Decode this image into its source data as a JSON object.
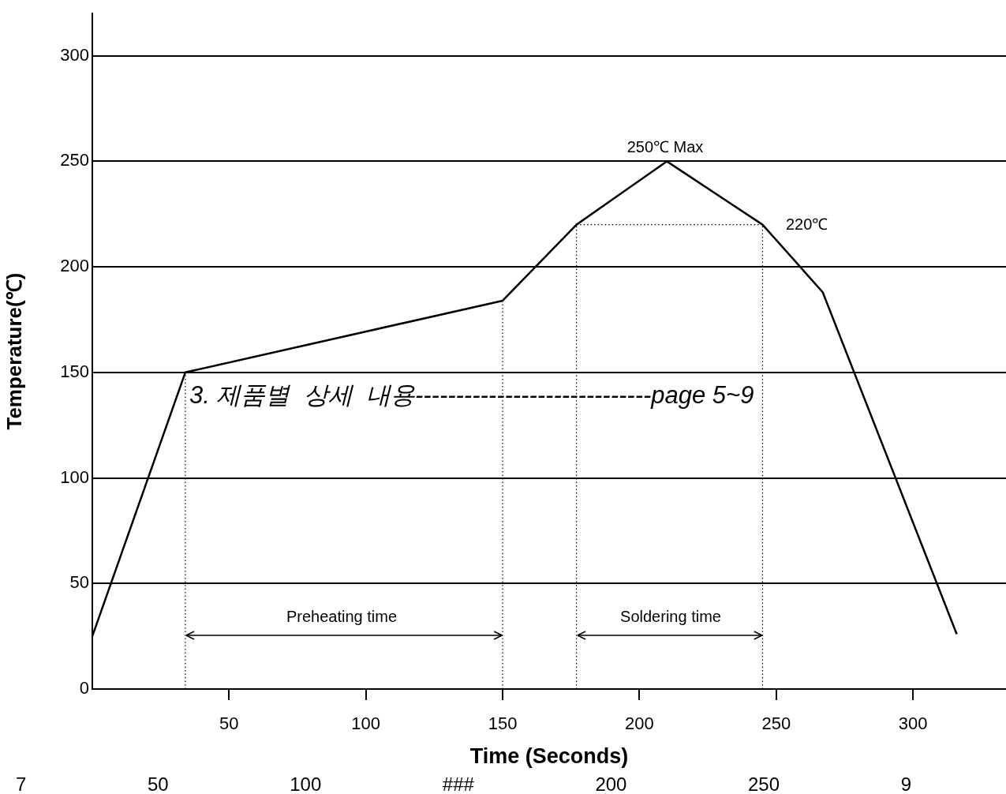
{
  "chart_data": {
    "type": "line",
    "xlabel": "Time (Seconds)",
    "ylabel": "Temperature(℃)",
    "xlim": [
      0,
      334
    ],
    "xticks": [
      50,
      100,
      150,
      200,
      250,
      300
    ],
    "ylim": [
      0,
      320
    ],
    "yticks": [
      0,
      50,
      100,
      150,
      200,
      250,
      300
    ],
    "grid": "y",
    "marker": "none",
    "legend": false,
    "series": [
      {
        "color": "#000000",
        "x": [
          0,
          34,
          150,
          177,
          210,
          245,
          267,
          316
        ],
        "values": [
          25,
          150,
          184,
          220,
          250,
          220,
          188,
          26
        ]
      },
      {
        "color": "#000000",
        "line_style": "dotted",
        "x": [
          34,
          34
        ],
        "values": [
          0,
          150
        ]
      },
      {
        "color": "#000000",
        "line_style": "dotted",
        "x": [
          150,
          150
        ],
        "values": [
          0,
          184
        ]
      },
      {
        "color": "#000000",
        "line_style": "dotted",
        "x": [
          177,
          177
        ],
        "values": [
          0,
          220
        ]
      },
      {
        "color": "#000000",
        "line_style": "dotted",
        "x": [
          245,
          245
        ],
        "values": [
          0,
          220
        ]
      },
      {
        "color": "#000000",
        "line_style": "dotted",
        "x": [
          177,
          245
        ],
        "values": [
          220,
          220
        ]
      }
    ],
    "annotations": [
      "250℃ Max",
      "220℃",
      "Preheating time",
      "Soldering time",
      "3. 제품별  상세  내용-----------------------------page 5~9",
      "7",
      "50",
      "100",
      "###",
      "200",
      "250",
      "9"
    ]
  }
}
